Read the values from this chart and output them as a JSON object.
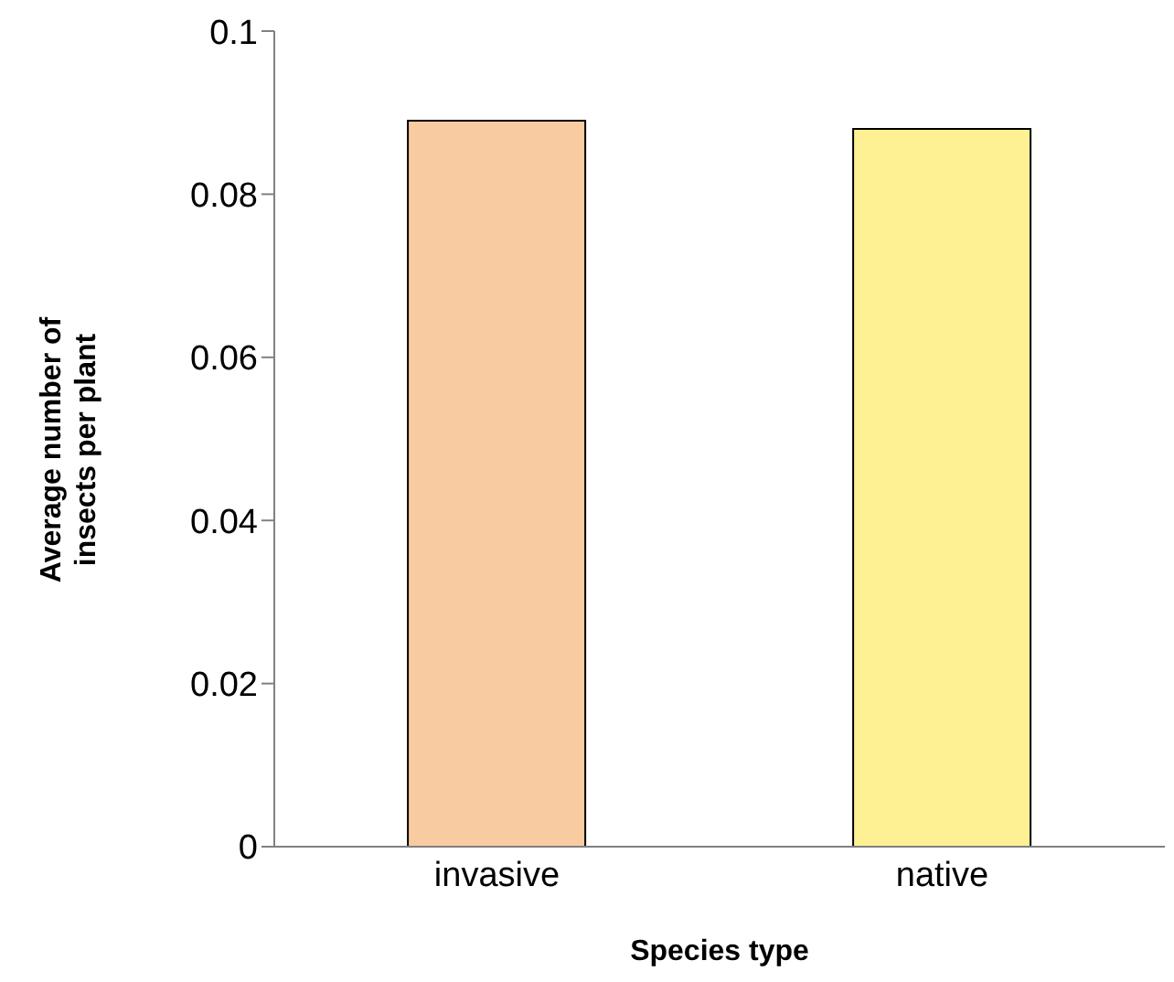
{
  "chart_data": {
    "type": "bar",
    "xlabel": "Species type",
    "ylabel": "Average number of insects per plant",
    "categories": [
      "invasive",
      "native"
    ],
    "values": [
      0.089,
      0.088
    ],
    "colors": [
      "#f9cba1",
      "#fef193"
    ],
    "ylim": [
      0,
      0.1
    ],
    "yticks": [
      0,
      0.02,
      0.04,
      0.06,
      0.08,
      0.1
    ],
    "grid": false,
    "legend": false
  }
}
